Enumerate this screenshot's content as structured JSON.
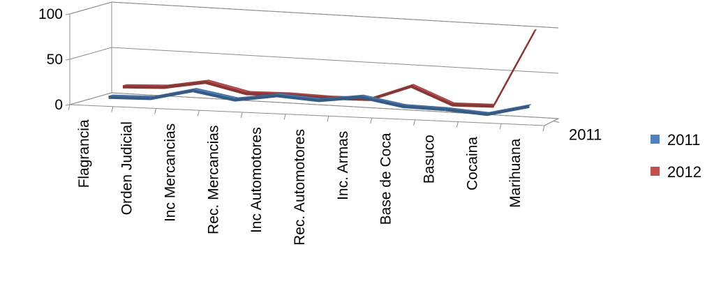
{
  "chart_data": {
    "type": "line",
    "style": "3d-line",
    "categories": [
      "Flagrancia",
      "Orden Judicial",
      "Inc Mercancias",
      "Rec. Mercancias",
      "Inc Automotores",
      "Rec. Automotores",
      "Inc. Armas",
      "Base de Coca",
      "Basuco",
      "Cocaina",
      "Marihuana"
    ],
    "series": [
      {
        "name": "2011",
        "color": "#4F81BD",
        "values": [
          5,
          6,
          17,
          9,
          16,
          13,
          19,
          11,
          10,
          7,
          18
        ]
      },
      {
        "name": "2012",
        "color": "#C0504D",
        "values": [
          12,
          14,
          22,
          12,
          13,
          12,
          13,
          30,
          12,
          13,
          98
        ]
      }
    ],
    "depth_labels": [
      "2011"
    ],
    "yticks": [
      "0",
      "50",
      "100"
    ],
    "ylim": [
      0,
      100
    ],
    "grid": true,
    "legend_position": "right"
  }
}
